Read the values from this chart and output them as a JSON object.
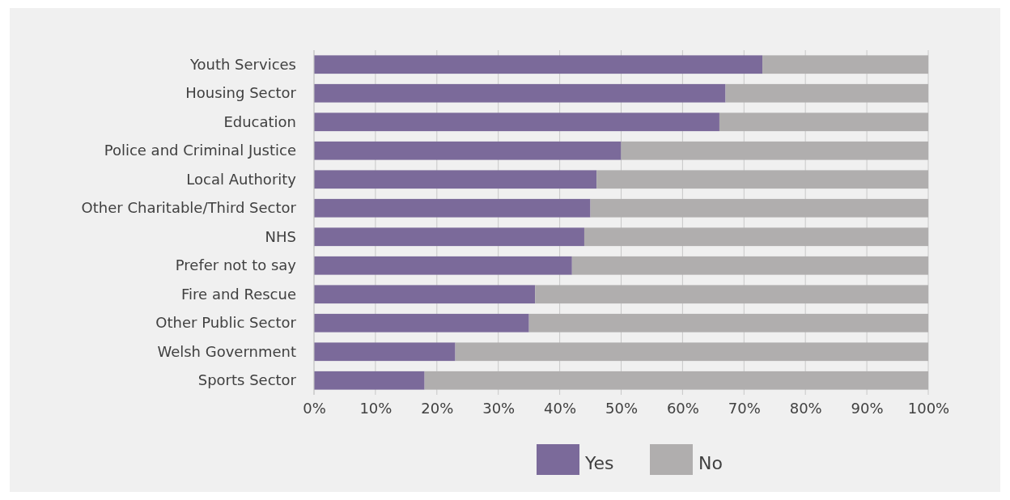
{
  "chart_data": {
    "type": "bar",
    "orientation": "horizontal",
    "stacked": true,
    "categories": [
      "Youth Services",
      "Housing Sector",
      "Education",
      "Police and Criminal Justice",
      "Local Authority",
      "Other Charitable/Third Sector",
      "NHS",
      "Prefer not to say",
      "Fire and Rescue",
      "Other Public Sector",
      "Welsh Government",
      "Sports Sector"
    ],
    "series": [
      {
        "name": "Yes",
        "color": "#7b6a9a",
        "values": [
          73,
          67,
          66,
          50,
          46,
          45,
          44,
          42,
          36,
          35,
          23,
          18
        ]
      },
      {
        "name": "No",
        "color": "#b0aeae",
        "values": [
          27,
          33,
          34,
          50,
          54,
          55,
          56,
          58,
          64,
          65,
          77,
          82
        ]
      }
    ],
    "xlim": [
      0,
      100
    ],
    "xticks": [
      {
        "value": 0,
        "label": "0%"
      },
      {
        "value": 10,
        "label": "10%"
      },
      {
        "value": 20,
        "label": "20%"
      },
      {
        "value": 30,
        "label": "30%"
      },
      {
        "value": 40,
        "label": "40%"
      },
      {
        "value": 50,
        "label": "50%"
      },
      {
        "value": 60,
        "label": "60%"
      },
      {
        "value": 70,
        "label": "70%"
      },
      {
        "value": 80,
        "label": "80%"
      },
      {
        "value": 90,
        "label": "90%"
      },
      {
        "value": 100,
        "label": "100%"
      }
    ],
    "grid": "x",
    "legend": "bottom"
  }
}
